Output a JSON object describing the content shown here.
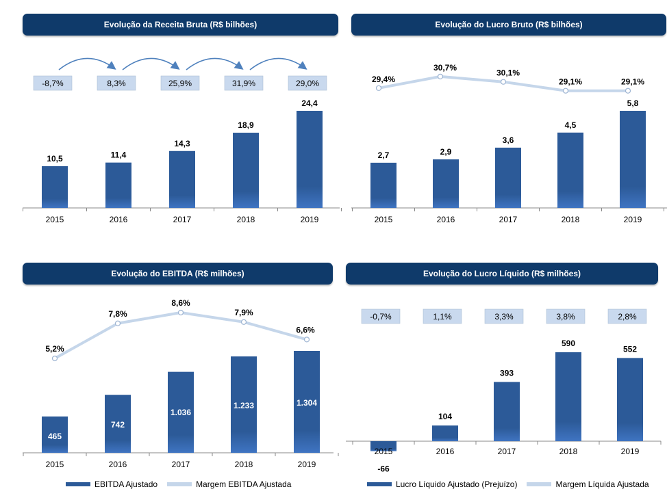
{
  "colors": {
    "bar": "#2c5a98",
    "line": "#c5d6ea",
    "banner": "#0f3a6a",
    "pct_box": "#c9d9ee",
    "arrow": "#4f81bd"
  },
  "chart_data": [
    {
      "id": "receita",
      "type": "bar",
      "title": "Evolução da Receita Bruta (R$ bilhões)",
      "categories": [
        "2015",
        "2016",
        "2017",
        "2018",
        "2019"
      ],
      "values": [
        10.5,
        11.4,
        14.3,
        18.9,
        24.4
      ],
      "value_labels": [
        "10,5",
        "11,4",
        "14,3",
        "18,9",
        "24,4"
      ],
      "growth_labels": [
        "-8,7%",
        "8,3%",
        "25,9%",
        "31,9%",
        "29,0%"
      ],
      "ylim": [
        0,
        24.4
      ]
    },
    {
      "id": "lucro_bruto",
      "type": "bar",
      "title": "Evolução do Lucro Bruto (R$ bilhões)",
      "categories": [
        "2015",
        "2016",
        "2017",
        "2018",
        "2019"
      ],
      "values": [
        2.7,
        2.9,
        3.6,
        4.5,
        5.8
      ],
      "value_labels": [
        "2,7",
        "2,9",
        "3,6",
        "4,5",
        "5,8"
      ],
      "margin_values": [
        29.4,
        30.7,
        30.1,
        29.1,
        29.1
      ],
      "margin_labels": [
        "29,4%",
        "30,7%",
        "30,1%",
        "29,1%",
        "29,1%"
      ],
      "ylim": [
        0,
        5.8
      ]
    },
    {
      "id": "ebitda",
      "type": "bar",
      "title": "Evolução do EBITDA (R$ milhões)",
      "categories": [
        "2015",
        "2016",
        "2017",
        "2018",
        "2019"
      ],
      "values": [
        465,
        742,
        1036,
        1233,
        1304
      ],
      "value_labels": [
        "465",
        "742",
        "1.036",
        "1.233",
        "1.304"
      ],
      "margin_values": [
        5.2,
        7.8,
        8.6,
        7.9,
        6.6
      ],
      "margin_labels": [
        "5,2%",
        "7,8%",
        "8,6%",
        "7,9%",
        "6,6%"
      ],
      "legend": [
        "EBITDA Ajustado",
        "Margem EBITDA Ajustada"
      ],
      "ylim": [
        0,
        1304
      ]
    },
    {
      "id": "lucro_liquido",
      "type": "bar",
      "title": "Evolução do Lucro Líquido (R$ milhões)",
      "categories": [
        "2015",
        "2016",
        "2017",
        "2018",
        "2019"
      ],
      "values": [
        -66,
        104,
        393,
        590,
        552
      ],
      "value_labels": [
        "-66",
        "104",
        "393",
        "590",
        "552"
      ],
      "margin_labels": [
        "-0,7%",
        "1,1%",
        "3,3%",
        "3,8%",
        "2,8%"
      ],
      "legend": [
        "Lucro Líquido Ajustado (Prejuízo)",
        "Margem Líquida Ajustada"
      ],
      "ylim": [
        -66,
        590
      ]
    }
  ]
}
